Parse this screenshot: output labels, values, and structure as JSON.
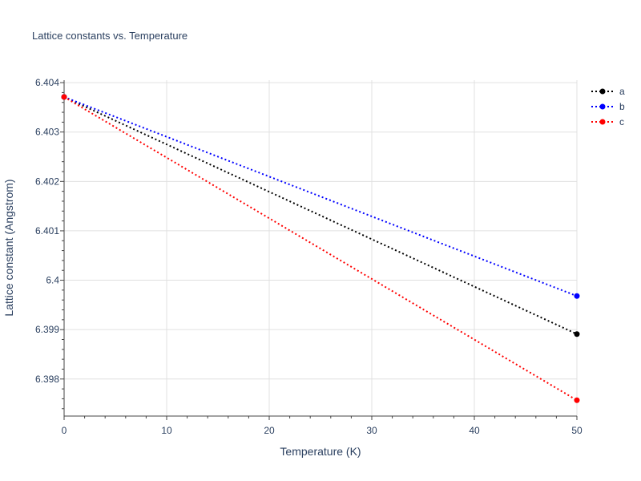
{
  "chart_data": {
    "type": "line",
    "title": "Lattice constants vs. Temperature",
    "xlabel": "Temperature (K)",
    "ylabel": "Lattice constant (Angstrom)",
    "x": [
      0,
      50
    ],
    "xlim": [
      0,
      50
    ],
    "ylim": [
      6.39725,
      6.40405
    ],
    "xticks": [
      0,
      10,
      20,
      30,
      40,
      50
    ],
    "yticks": [
      6.398,
      6.399,
      6.4,
      6.401,
      6.402,
      6.403,
      6.404
    ],
    "xtick_labels": [
      "0",
      "10",
      "20",
      "30",
      "40",
      "50"
    ],
    "ytick_labels": [
      "6.398",
      "6.399",
      "6.4",
      "6.401",
      "6.402",
      "6.403",
      "6.404"
    ],
    "grid": true,
    "legend_position": "top-right",
    "series": [
      {
        "name": "a",
        "values": [
          6.40371,
          6.39891
        ],
        "color": "#000000"
      },
      {
        "name": "b",
        "values": [
          6.40371,
          6.39968
        ],
        "color": "#0000ff"
      },
      {
        "name": "c",
        "values": [
          6.40371,
          6.39757
        ],
        "color": "#ff0000"
      }
    ]
  }
}
